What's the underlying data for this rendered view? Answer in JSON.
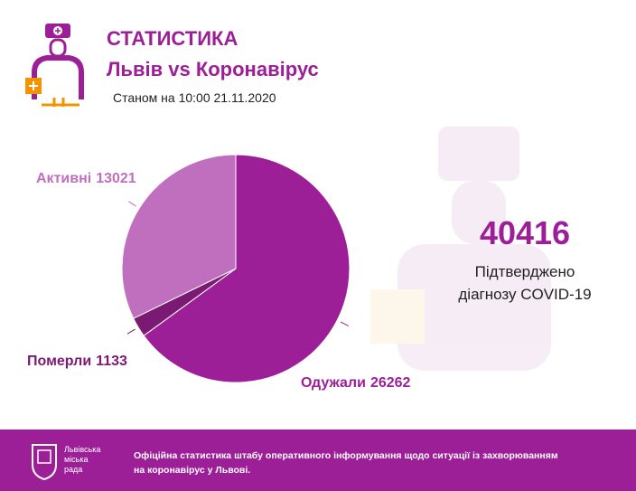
{
  "header": {
    "title": "СТАТИСТИКА",
    "subtitle": "Львів vs Коронавірус",
    "date": "Станом на 10:00 21.11.2020"
  },
  "chart_data": {
    "type": "pie",
    "categories": [
      "Одужали",
      "Померли",
      "Активні"
    ],
    "values": [
      26262,
      1133,
      13021
    ],
    "colors": [
      "#9c1f98",
      "#7a1a73",
      "#c06fbf"
    ],
    "label_colors": [
      "#9c1f98",
      "#7a1a73",
      "#c06fbf"
    ]
  },
  "summary": {
    "value": 40416,
    "label_lines": [
      "Підтверджено",
      "діагнозу COVID-19"
    ]
  },
  "footer": {
    "logo_lines": [
      "Львівська",
      "міська",
      "рада"
    ],
    "text": "Офіційна статистика штабу оперативного інформування щодо ситуації із захворюванням на коронавірус у Львові."
  }
}
